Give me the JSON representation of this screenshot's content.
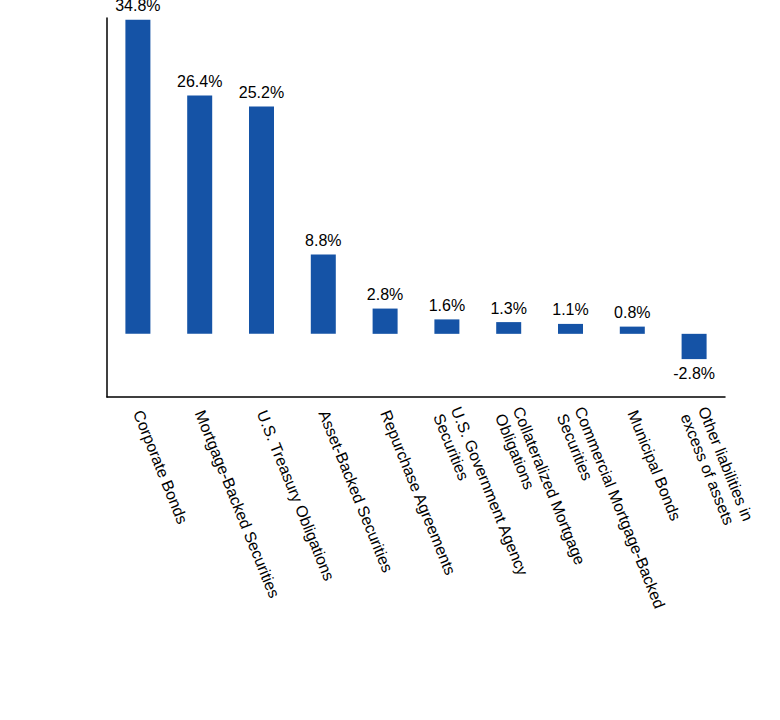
{
  "chart_data": {
    "type": "bar",
    "categories": [
      "Corporate Bonds",
      "Mortgage-Backed Securities",
      "U.S. Treasury Obligations",
      "Asset-Backed Securities",
      "Repurchase Agreements",
      "U.S. Government Agency\nSecurities",
      "Collateralized Mortgage\nObligations",
      "Commercial Mortgage-Backed\nSecurities",
      "Municipal Bonds",
      "Other liabilities in\nexcess of assets"
    ],
    "values": [
      34.8,
      26.4,
      25.2,
      8.8,
      2.8,
      1.6,
      1.3,
      1.1,
      0.8,
      -2.8
    ],
    "value_labels": [
      "34.8%",
      "26.4%",
      "25.2%",
      "8.8%",
      "2.8%",
      "1.6%",
      "1.3%",
      "1.1%",
      "0.8%",
      "-2.8%"
    ],
    "color": "#1553a6",
    "ylim": [
      -7,
      35
    ],
    "yticks": [],
    "grid": false,
    "data_labels": true,
    "tick_labels": "x"
  }
}
